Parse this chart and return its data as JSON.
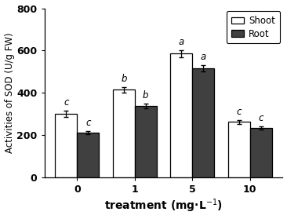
{
  "groups": [
    "0",
    "1",
    "5",
    "10"
  ],
  "shoot_values": [
    300,
    415,
    585,
    262
  ],
  "root_values": [
    210,
    338,
    515,
    232
  ],
  "shoot_errors": [
    14,
    13,
    18,
    10
  ],
  "root_errors": [
    8,
    12,
    16,
    8
  ],
  "shoot_letters": [
    "c",
    "b",
    "a",
    "c"
  ],
  "root_letters": [
    "c",
    "b",
    "a",
    "c"
  ],
  "shoot_color": "#ffffff",
  "root_color": "#404040",
  "bar_edgecolor": "#000000",
  "ylabel": "Activities of SOD (U/g FW)",
  "ylim": [
    0,
    800
  ],
  "yticks": [
    0,
    200,
    400,
    600,
    800
  ],
  "bar_width": 0.38,
  "legend_labels": [
    "Shoot",
    "Root"
  ],
  "font_size": 8.5,
  "tick_fontsize": 9,
  "letter_fontsize": 8.5,
  "xlabel_fontsize": 10,
  "ylabel_fontsize": 8.5
}
